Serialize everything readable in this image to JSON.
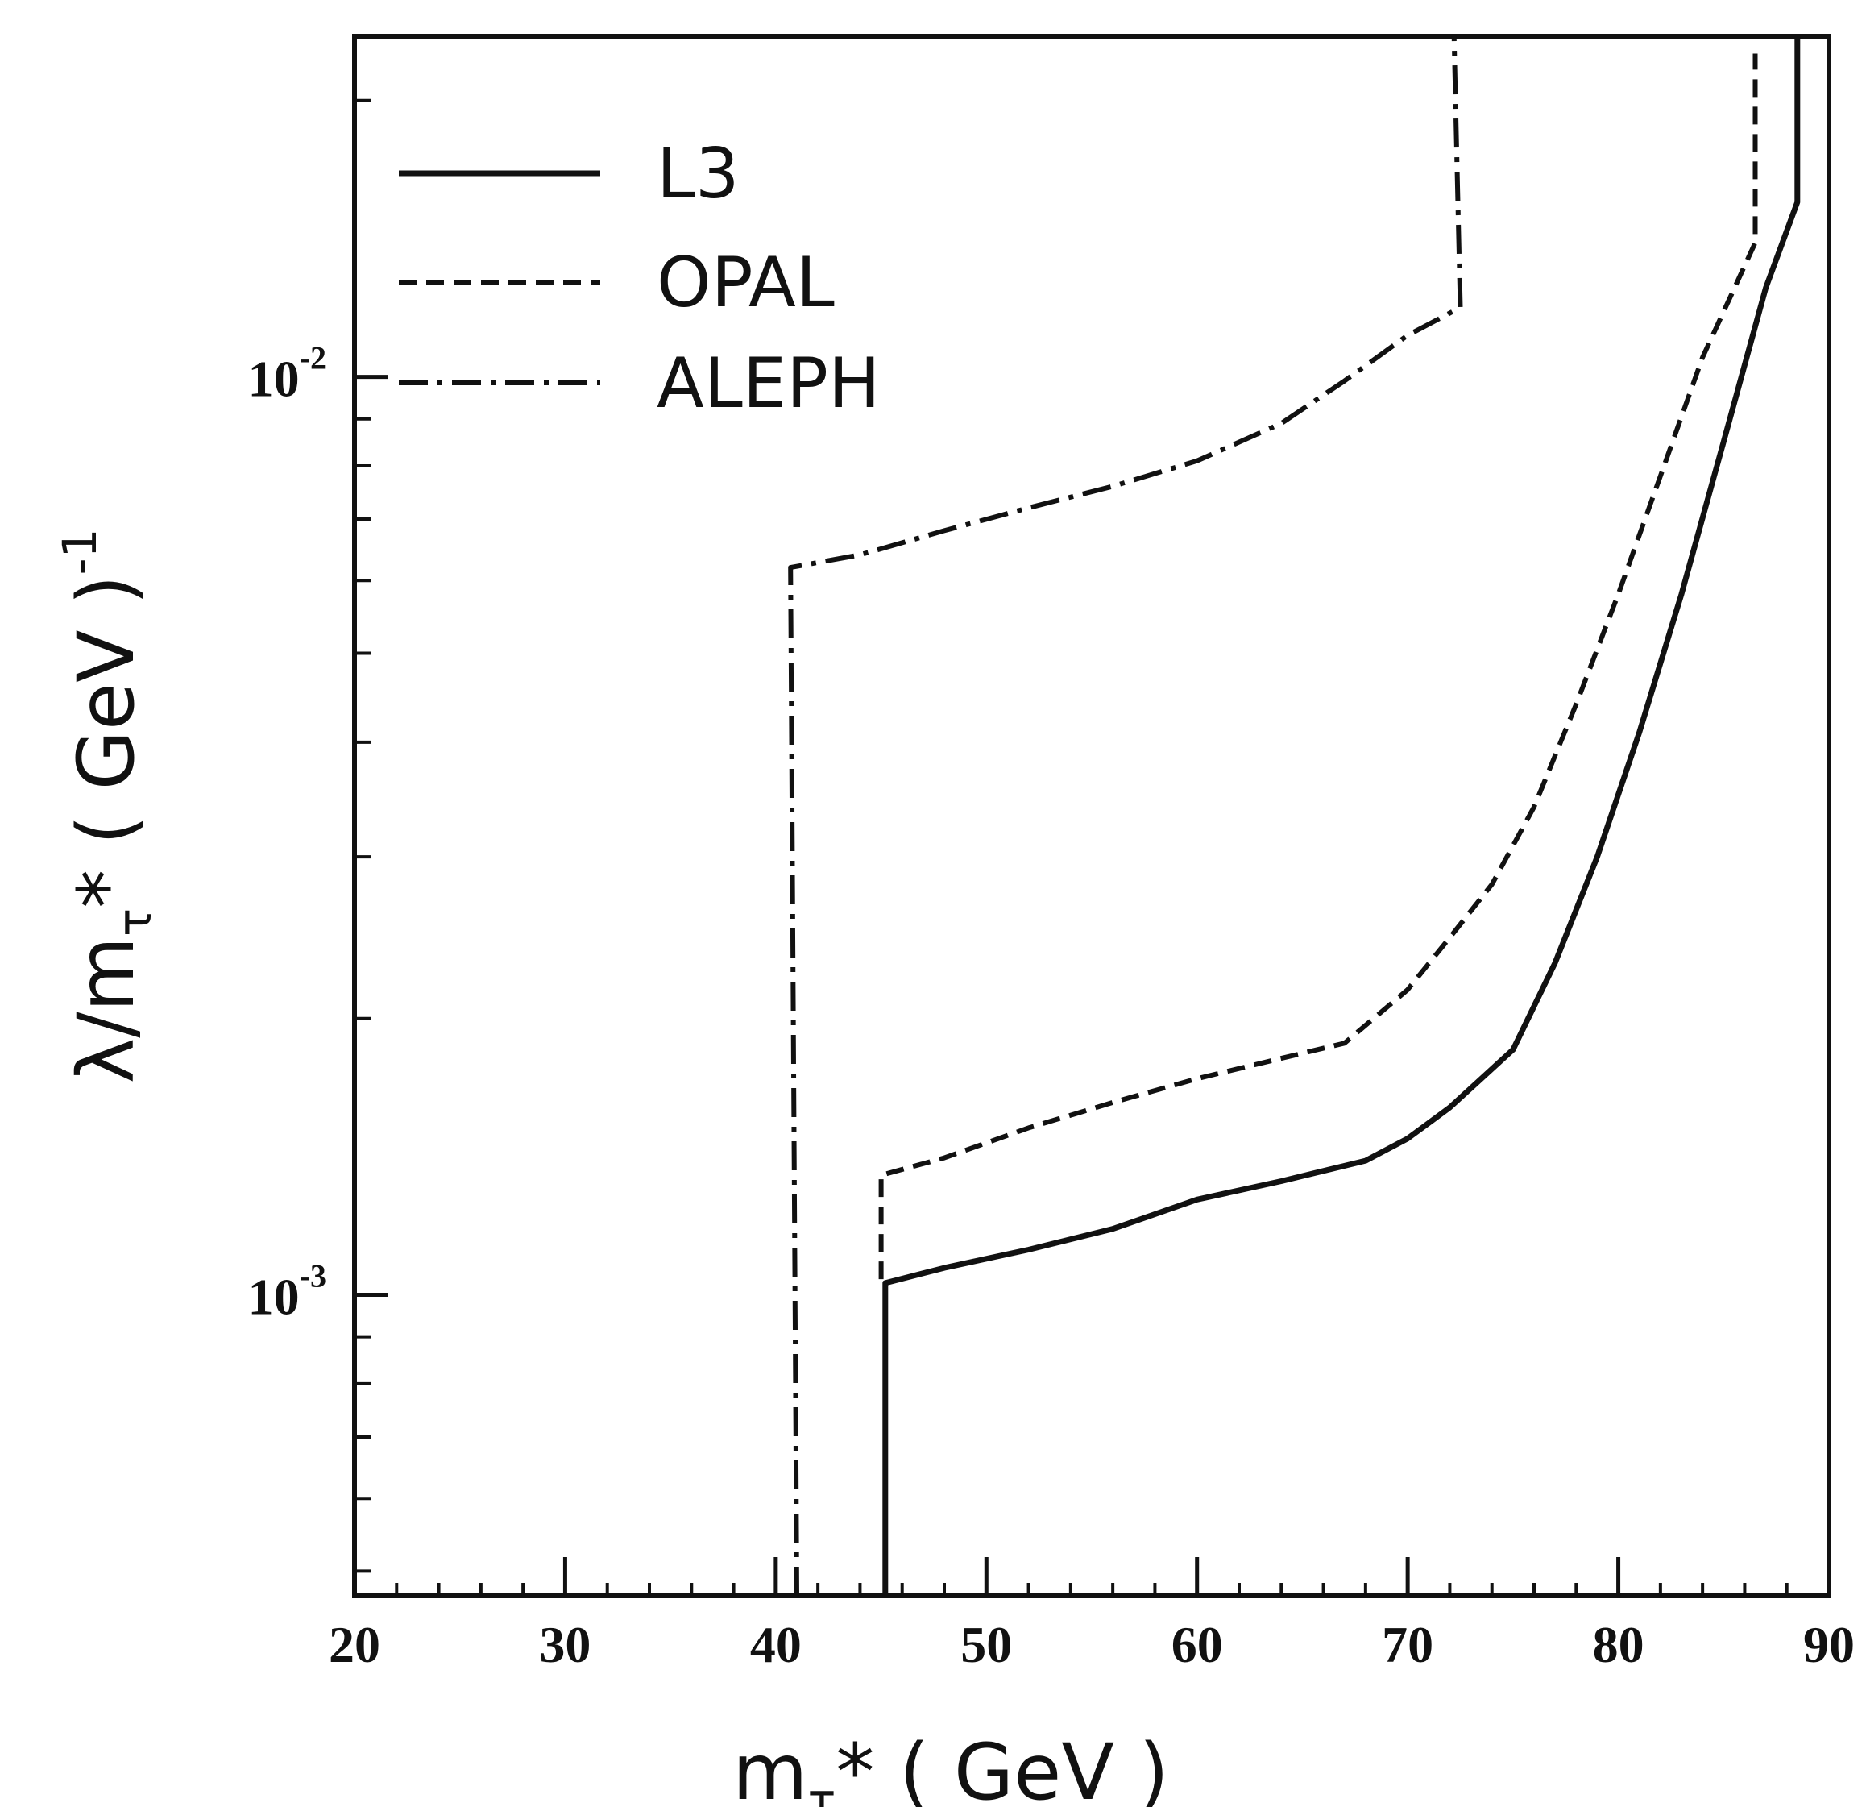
{
  "chart_data": {
    "type": "line",
    "xlabel": "mτ* ( GeV )",
    "xlabel_main": "m",
    "xlabel_sub": "τ",
    "xlabel_rest": "* ( GeV )",
    "ylabel": "λ/mτ* (GeV)⁻¹",
    "ylabel_main": "λ/m",
    "ylabel_sub": "τ",
    "ylabel_rest": "* ( GeV )",
    "ylabel_exp": "-1",
    "xlim": [
      20,
      90
    ],
    "ylim": [
      0.00047,
      0.0235
    ],
    "yscale": "log",
    "grid": false,
    "legend_position": "top-left",
    "x_ticks": [
      {
        "value": 20,
        "label": "20"
      },
      {
        "value": 30,
        "label": "30"
      },
      {
        "value": 40,
        "label": "40"
      },
      {
        "value": 50,
        "label": "50"
      },
      {
        "value": 60,
        "label": "60"
      },
      {
        "value": 70,
        "label": "70"
      },
      {
        "value": 80,
        "label": "80"
      },
      {
        "value": 90,
        "label": "90"
      }
    ],
    "y_ticks": [
      {
        "value": 0.01,
        "base": "10",
        "exp": "-2"
      },
      {
        "value": 0.001,
        "base": "10",
        "exp": "-3"
      }
    ],
    "series": [
      {
        "name": "L3",
        "style": "solid",
        "points": [
          [
            45.2,
            0.00047
          ],
          [
            45.2,
            0.00103
          ],
          [
            48,
            0.00107
          ],
          [
            52,
            0.00112
          ],
          [
            56,
            0.00118
          ],
          [
            60,
            0.00127
          ],
          [
            64,
            0.00133
          ],
          [
            68,
            0.0014
          ],
          [
            70,
            0.00148
          ],
          [
            72,
            0.0016
          ],
          [
            75,
            0.00185
          ],
          [
            77,
            0.0023
          ],
          [
            79,
            0.003
          ],
          [
            81,
            0.0041
          ],
          [
            83,
            0.0058
          ],
          [
            85,
            0.0085
          ],
          [
            87,
            0.0125
          ],
          [
            88.5,
            0.0155
          ],
          [
            88.5,
            0.0235
          ]
        ]
      },
      {
        "name": "OPAL",
        "style": "dashed",
        "points": [
          [
            45,
            0.00104
          ],
          [
            45,
            0.00135
          ],
          [
            48,
            0.00141
          ],
          [
            52,
            0.00152
          ],
          [
            56,
            0.00162
          ],
          [
            60,
            0.00172
          ],
          [
            64,
            0.00181
          ],
          [
            67,
            0.00188
          ],
          [
            70,
            0.00215
          ],
          [
            72,
            0.00245
          ],
          [
            74,
            0.0028
          ],
          [
            76,
            0.0034
          ],
          [
            78,
            0.0044
          ],
          [
            80,
            0.0058
          ],
          [
            82,
            0.0078
          ],
          [
            84,
            0.0105
          ],
          [
            86.5,
            0.014
          ],
          [
            86.5,
            0.0225
          ]
        ]
      },
      {
        "name": "ALEPH",
        "style": "dash-dot",
        "points": [
          [
            41,
            0.00047
          ],
          [
            40.7,
            0.0062
          ],
          [
            44,
            0.0064
          ],
          [
            48,
            0.0068
          ],
          [
            52,
            0.0072
          ],
          [
            56,
            0.0076
          ],
          [
            60,
            0.0081
          ],
          [
            64,
            0.0089
          ],
          [
            67,
            0.0099
          ],
          [
            70,
            0.0111
          ],
          [
            72.5,
            0.0119
          ],
          [
            72.2,
            0.0235
          ]
        ]
      }
    ]
  },
  "colors": {
    "ink": "#111111",
    "background": "#ffffff"
  }
}
